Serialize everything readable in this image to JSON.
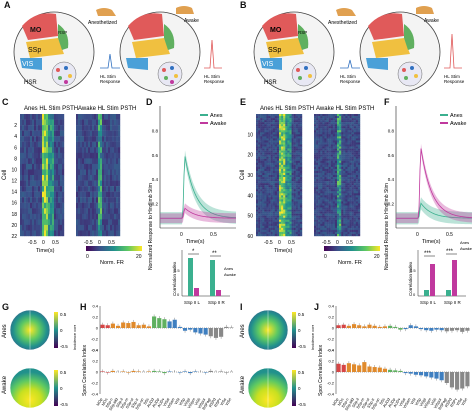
{
  "panels": {
    "A": {
      "letter": "A",
      "left_label": "Anesthetized",
      "right_label": "Awake",
      "stim_label": "HL Stim\nResponse",
      "regions": [
        "MO",
        "SSp",
        "VIS",
        "RSP",
        "HSR"
      ]
    },
    "B": {
      "letter": "B",
      "left_label": "Anesthetized",
      "right_label": "Awake",
      "stim_label": "HL Stim\nResponse",
      "regions": [
        "MO",
        "SSp",
        "VIS",
        "RSP",
        "HSR"
      ]
    },
    "C": {
      "letter": "C",
      "title_left": "Anes HL Stim PSTH",
      "title_right": "Awake HL Stim PSTH",
      "ylabel": "Cell",
      "yticks": [
        "2",
        "4",
        "6",
        "8",
        "10",
        "12",
        "14",
        "16",
        "18",
        "20",
        "22"
      ],
      "xticks": [
        "-0.5",
        "0",
        "0.5"
      ],
      "xlabel": "Time(s)",
      "cbar_ticks": [
        "0",
        "20"
      ],
      "cbar_label": "Norm. FR"
    },
    "D": {
      "letter": "D",
      "ylabel": "Normalized Response to Hindlimb Stim",
      "xlabel": "Time(s)",
      "xticks": [
        "0",
        "0.5"
      ],
      "yticks": [
        "0.2",
        "0.4",
        "0.6",
        "0.8"
      ],
      "legend": [
        "Anes",
        "Awake"
      ],
      "inset_ylabel": "Correlation Index",
      "inset_xticks": [
        "SSp II L",
        "SSp II R"
      ],
      "inset_sig": [
        "*",
        "**"
      ],
      "inset_legend": [
        "Anes",
        "Awake"
      ],
      "inset_yticks": [
        "0",
        "0.5"
      ]
    },
    "E": {
      "letter": "E",
      "title_left": "Anes HL Stim PSTH",
      "title_right": "Awake HL Stim PSTH",
      "ylabel": "Cell",
      "yticks": [
        "10",
        "20",
        "30",
        "40",
        "50",
        "60"
      ],
      "xticks": [
        "-0.5",
        "0",
        "0.5"
      ],
      "xlabel": "Time(s)",
      "cbar_ticks": [
        "0",
        "20"
      ],
      "cbar_label": "Norm. FR"
    },
    "F": {
      "letter": "F",
      "ylabel": "Normalized Response to Hindlimb Stim",
      "xlabel": "Time(s)",
      "xticks": [
        "0",
        "0.5"
      ],
      "yticks": [
        "0.2",
        "0.4",
        "0.6",
        "0.8"
      ],
      "legend": [
        "Anes",
        "Awake"
      ],
      "inset_ylabel": "Correlation Index",
      "inset_xticks": [
        "SSp II L",
        "SSp II R"
      ],
      "inset_sig": [
        "***",
        "***"
      ],
      "inset_legend": [
        "Anes",
        "Awake"
      ],
      "inset_yticks": [
        "0",
        "0.5"
      ]
    },
    "G": {
      "letter": "G",
      "row_labels": [
        "Anes",
        "Awake"
      ],
      "cbar_ticks": [
        "0.5",
        "0",
        "-0.5"
      ],
      "cbar_label": "Incidence corr"
    },
    "H": {
      "letter": "H",
      "ylabel": "Spon Correlation Index",
      "yticks": [
        "0.4",
        "0.2",
        "0",
        "-0.2",
        "-0.4"
      ]
    },
    "I": {
      "letter": "I",
      "row_labels": [
        "Anes",
        "Awake"
      ],
      "cbar_ticks": [
        "0.5",
        "0",
        "-0.5"
      ],
      "cbar_label": "Incidence corr"
    },
    "J": {
      "letter": "J",
      "ylabel": "Spon Correlation Index",
      "yticks": [
        "0.4",
        "0.2",
        "0",
        "-0.2",
        "-0.4"
      ]
    }
  },
  "colors": {
    "anes": "#3bb08f",
    "awake": "#c0399e",
    "mo": "#e05a5a",
    "ssp": "#f0c040",
    "vis": "#4aa0d8",
    "rsp": "#60b060"
  },
  "bar_regions": [
    "MOp",
    "MOs",
    "SSp-n",
    "SSp-bfd",
    "SSp-ll",
    "SSp-m",
    "SSp-ul",
    "SSp-tr",
    "SSp-un",
    "SSs",
    "AUDd",
    "AUDp",
    "AUDv",
    "VISal",
    "VISam",
    "VISl",
    "VISp",
    "VISpl",
    "VISpm",
    "VISli",
    "VISpor",
    "RSPagl",
    "RSPd",
    "RSPv",
    "VISa",
    "VISrl"
  ],
  "chart_data": [
    {
      "type": "bar",
      "name": "H-anes",
      "values": [
        0.06,
        0.05,
        0.08,
        0.04,
        0.1,
        0.09,
        0.11,
        0.05,
        0.06,
        0.03,
        0.21,
        0.18,
        0.16,
        0.12,
        0.15,
        0.02,
        -0.05,
        -0.03,
        -0.08,
        -0.1,
        -0.12,
        -0.15,
        -0.18,
        -0.16,
        0.02,
        0.01
      ]
    },
    {
      "type": "bar",
      "name": "H-awake",
      "values": [
        0.01,
        -0.01,
        0.02,
        0.0,
        0.01,
        -0.01,
        0.02,
        0.01,
        0.0,
        0.01,
        0.02,
        0.01,
        -0.02,
        0.01,
        0.0,
        -0.01,
        0.01,
        -0.02,
        0.01,
        0.0,
        -0.01,
        0.02,
        0.0,
        0.01,
        -0.01,
        0.0
      ]
    },
    {
      "type": "bar",
      "name": "J-anes",
      "values": [
        0.05,
        0.06,
        0.04,
        0.07,
        0.05,
        0.03,
        0.06,
        0.04,
        0.02,
        0.03,
        0.04,
        0.02,
        -0.03,
        -0.02,
        0.05,
        0.03,
        -0.02,
        -0.04,
        -0.05,
        -0.03,
        -0.04,
        -0.06,
        -0.05,
        -0.04,
        -0.07,
        -0.05
      ]
    },
    {
      "type": "bar",
      "name": "J-awake",
      "values": [
        0.15,
        0.13,
        0.16,
        0.14,
        0.12,
        0.18,
        0.1,
        0.09,
        0.08,
        0.06,
        0.04,
        0.03,
        0.02,
        -0.02,
        -0.03,
        -0.05,
        -0.06,
        -0.08,
        -0.1,
        -0.12,
        -0.15,
        -0.2,
        -0.28,
        -0.32,
        -0.3,
        -0.26
      ]
    }
  ]
}
